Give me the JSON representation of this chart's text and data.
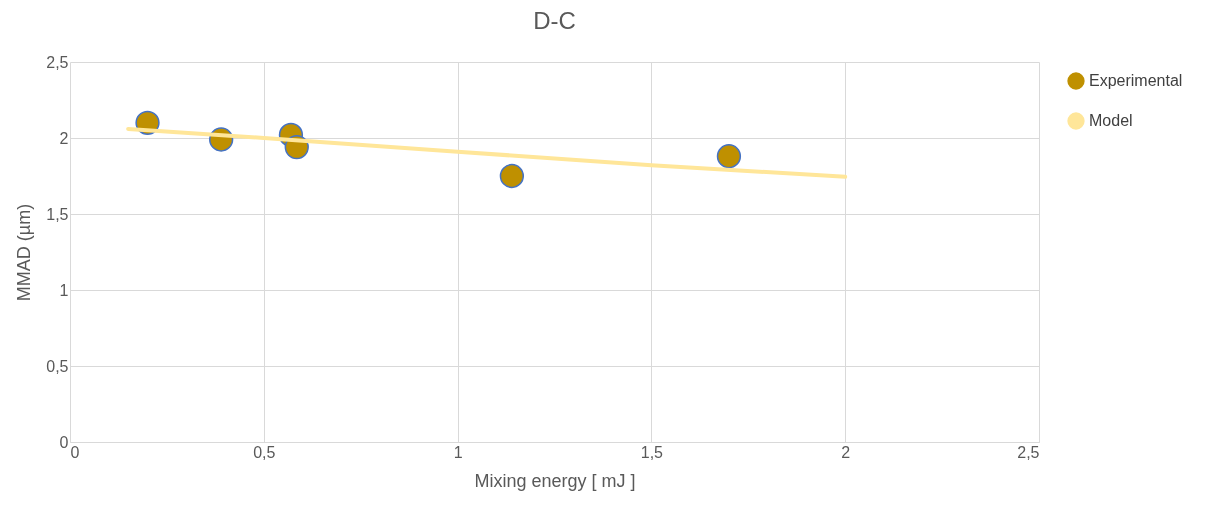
{
  "chart_data": {
    "type": "scatter",
    "title": "D-C",
    "xlabel": "Mixing energy  [ mJ ]",
    "ylabel": "MMAD (µm)",
    "series": [
      {
        "name": "Experimental",
        "color": "#bf9000",
        "marker": "circle",
        "x": [
          0.2,
          0.39,
          0.57,
          0.585,
          1.14,
          1.7
        ],
        "values": [
          2.1,
          1.99,
          2.02,
          1.94,
          1.75,
          1.88
        ]
      },
      {
        "name": "Model",
        "type": "line",
        "color": "#ffe699",
        "line_style": "solid",
        "x": [
          0.15,
          0.5,
          1.0,
          1.5,
          2.0
        ],
        "values": [
          2.06,
          2.0,
          1.91,
          1.82,
          1.745
        ]
      }
    ],
    "xlim": [
      0,
      2.5
    ],
    "xticks": [
      0,
      {
        "value": 0.5,
        "label": "0,5"
      },
      1,
      {
        "value": 1.5,
        "label": "1,5"
      },
      2,
      {
        "value": 2.5,
        "label": "2,5"
      }
    ],
    "ylim": [
      0,
      2.5
    ],
    "yticks": [
      0,
      {
        "value": 0.5,
        "label": "0,5"
      },
      1,
      {
        "value": 1.5,
        "label": "1,5"
      },
      2,
      {
        "value": 2.5,
        "label": "2,5"
      }
    ],
    "grid": true,
    "legend": "right"
  }
}
